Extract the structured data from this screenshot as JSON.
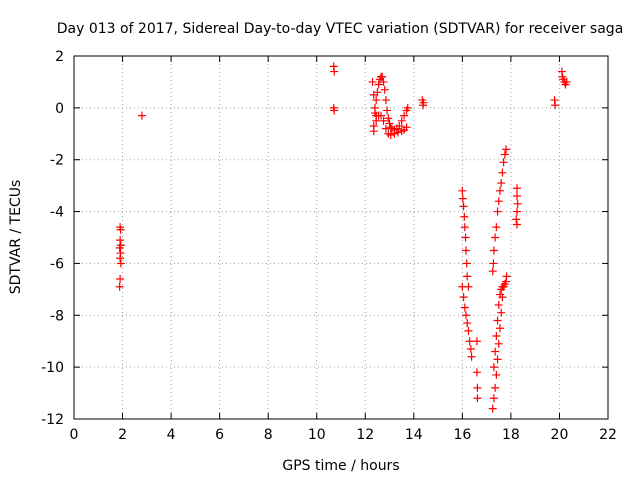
{
  "chart_data": {
    "type": "scatter",
    "title": "Day 013 of 2017, Sidereal Day-to-day VTEC variation (SDTVAR) for receiver saga",
    "xlabel": "GPS time / hours",
    "ylabel": "SDTVAR / TECUs",
    "xlim": [
      0,
      22
    ],
    "ylim": [
      -12,
      2
    ],
    "xticks": [
      0,
      2,
      4,
      6,
      8,
      10,
      12,
      14,
      16,
      18,
      20,
      22
    ],
    "yticks": [
      -12,
      -10,
      -8,
      -6,
      -4,
      -2,
      0,
      2
    ],
    "xtick_labels": [
      "0",
      "2",
      "4",
      "6",
      "8",
      "10",
      "12",
      "14",
      "16",
      "18",
      "20",
      "22"
    ],
    "ytick_labels": [
      "-12",
      "-10",
      "-8",
      "-6",
      "-4",
      "-2",
      "0",
      "2"
    ],
    "grid": true,
    "marker": "+",
    "color": "#ff0000",
    "series": [
      {
        "name": "SDTVAR",
        "points": [
          [
            1.9,
            -4.6
          ],
          [
            1.92,
            -4.7
          ],
          [
            1.9,
            -5.1
          ],
          [
            1.93,
            -5.3
          ],
          [
            1.88,
            -5.4
          ],
          [
            1.92,
            -5.6
          ],
          [
            1.9,
            -5.8
          ],
          [
            1.93,
            -6.0
          ],
          [
            1.9,
            -6.6
          ],
          [
            1.88,
            -6.9
          ],
          [
            2.8,
            -0.3
          ],
          [
            10.7,
            1.6
          ],
          [
            10.72,
            1.4
          ],
          [
            10.7,
            0.0
          ],
          [
            10.72,
            -0.1
          ],
          [
            12.35,
            -0.7
          ],
          [
            12.4,
            -0.2
          ],
          [
            12.45,
            0.3
          ],
          [
            12.5,
            0.6
          ],
          [
            12.55,
            0.9
          ],
          [
            12.6,
            1.1
          ],
          [
            12.65,
            1.2
          ],
          [
            12.7,
            1.2
          ],
          [
            12.75,
            1.0
          ],
          [
            12.8,
            0.7
          ],
          [
            12.85,
            0.3
          ],
          [
            12.9,
            -0.1
          ],
          [
            12.95,
            -0.4
          ],
          [
            13.0,
            -0.6
          ],
          [
            13.05,
            -0.75
          ],
          [
            13.1,
            -0.8
          ],
          [
            13.2,
            -0.85
          ],
          [
            13.3,
            -0.8
          ],
          [
            13.4,
            -0.7
          ],
          [
            13.5,
            -0.5
          ],
          [
            13.6,
            -0.3
          ],
          [
            13.7,
            -0.1
          ],
          [
            13.75,
            0.0
          ],
          [
            12.35,
            -0.9
          ],
          [
            12.45,
            -0.5
          ],
          [
            12.55,
            -0.3
          ],
          [
            12.65,
            -0.3
          ],
          [
            12.75,
            -0.5
          ],
          [
            12.85,
            -0.8
          ],
          [
            12.95,
            -1.0
          ],
          [
            13.05,
            -1.05
          ],
          [
            13.2,
            -1.0
          ],
          [
            13.35,
            -0.95
          ],
          [
            13.5,
            -0.9
          ],
          [
            13.6,
            -0.85
          ],
          [
            13.7,
            -0.75
          ],
          [
            12.3,
            1.0
          ],
          [
            12.35,
            0.5
          ],
          [
            12.4,
            0.0
          ],
          [
            12.45,
            -0.3
          ],
          [
            14.35,
            0.3
          ],
          [
            14.38,
            0.1
          ],
          [
            14.4,
            0.2
          ],
          [
            16.0,
            -3.2
          ],
          [
            16.02,
            -3.5
          ],
          [
            16.05,
            -3.8
          ],
          [
            16.08,
            -4.2
          ],
          [
            16.1,
            -4.6
          ],
          [
            16.13,
            -5.0
          ],
          [
            16.15,
            -5.5
          ],
          [
            16.18,
            -6.0
          ],
          [
            16.2,
            -6.5
          ],
          [
            16.25,
            -6.9
          ],
          [
            16.0,
            -6.9
          ],
          [
            16.05,
            -7.3
          ],
          [
            16.1,
            -7.7
          ],
          [
            16.15,
            -8.0
          ],
          [
            16.2,
            -8.3
          ],
          [
            16.25,
            -8.6
          ],
          [
            16.3,
            -9.0
          ],
          [
            16.35,
            -9.3
          ],
          [
            16.38,
            -9.6
          ],
          [
            16.6,
            -9.0
          ],
          [
            16.6,
            -10.2
          ],
          [
            16.62,
            -10.8
          ],
          [
            16.62,
            -11.2
          ],
          [
            17.25,
            -11.6
          ],
          [
            17.3,
            -11.2
          ],
          [
            17.35,
            -10.8
          ],
          [
            17.4,
            -10.3
          ],
          [
            17.45,
            -9.7
          ],
          [
            17.5,
            -9.1
          ],
          [
            17.55,
            -8.5
          ],
          [
            17.6,
            -7.9
          ],
          [
            17.65,
            -7.3
          ],
          [
            17.7,
            -6.9
          ],
          [
            17.75,
            -6.8
          ],
          [
            17.8,
            -6.7
          ],
          [
            17.82,
            -6.5
          ],
          [
            17.3,
            -10.0
          ],
          [
            17.35,
            -9.4
          ],
          [
            17.4,
            -8.8
          ],
          [
            17.45,
            -8.2
          ],
          [
            17.5,
            -7.6
          ],
          [
            17.55,
            -7.2
          ],
          [
            17.6,
            -7.0
          ],
          [
            17.65,
            -6.9
          ],
          [
            17.25,
            -6.3
          ],
          [
            17.28,
            -6.0
          ],
          [
            17.3,
            -5.5
          ],
          [
            17.35,
            -5.0
          ],
          [
            17.4,
            -4.6
          ],
          [
            17.45,
            -4.0
          ],
          [
            17.5,
            -3.6
          ],
          [
            17.55,
            -3.2
          ],
          [
            17.6,
            -2.9
          ],
          [
            17.65,
            -2.5
          ],
          [
            17.7,
            -2.1
          ],
          [
            17.75,
            -1.8
          ],
          [
            17.8,
            -1.6
          ],
          [
            18.25,
            -3.1
          ],
          [
            18.25,
            -3.4
          ],
          [
            18.28,
            -3.7
          ],
          [
            18.25,
            -4.0
          ],
          [
            18.22,
            -4.3
          ],
          [
            18.25,
            -4.5
          ],
          [
            19.8,
            0.3
          ],
          [
            19.82,
            0.1
          ],
          [
            20.1,
            1.4
          ],
          [
            20.12,
            1.2
          ],
          [
            20.15,
            1.1
          ],
          [
            20.2,
            1.0
          ],
          [
            20.25,
            0.9
          ],
          [
            20.3,
            1.0
          ]
        ]
      }
    ]
  }
}
